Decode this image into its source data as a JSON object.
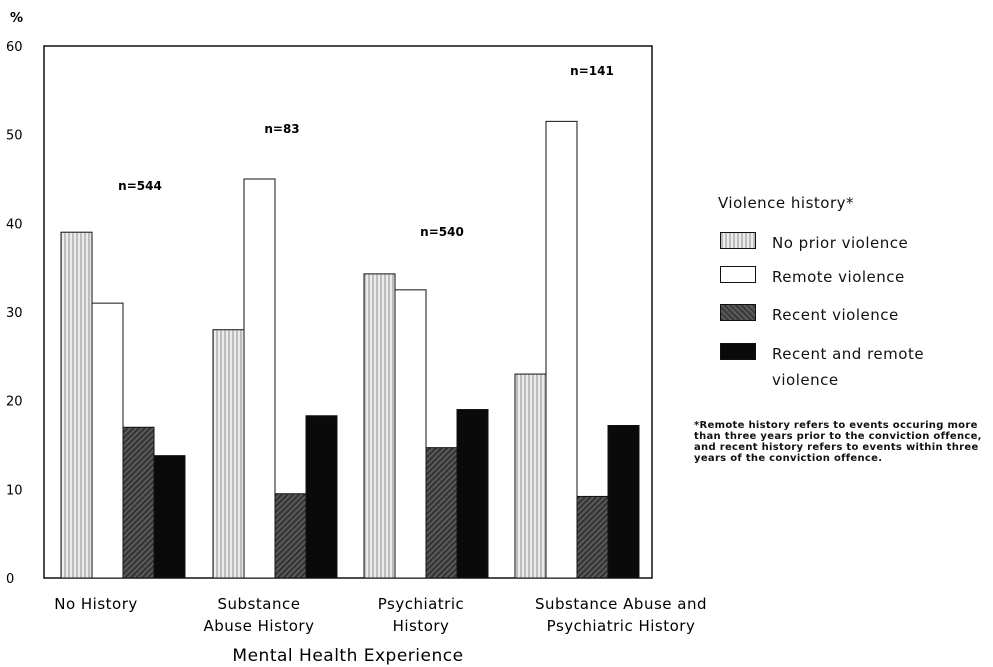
{
  "chart_data": {
    "type": "bar",
    "y_unit_label": "%",
    "xlabel": "Mental Health Experience",
    "ylim": [
      0,
      60
    ],
    "yticks": [
      "0",
      "10",
      "20",
      "30",
      "40",
      "50",
      "60"
    ],
    "categories": [
      [
        "No History"
      ],
      [
        "Substance",
        "Abuse History"
      ],
      [
        "Psychiatric",
        "History"
      ],
      [
        "Substance Abuse and",
        "Psychiatric History"
      ]
    ],
    "sample_sizes": [
      "n=544",
      "n=83",
      "n=540",
      "n=141"
    ],
    "series": [
      {
        "name": "No prior violence",
        "values": [
          39,
          28,
          34.3,
          23
        ]
      },
      {
        "name": "Remote violence",
        "values": [
          31,
          45,
          32.5,
          51.5
        ]
      },
      {
        "name": "Recent violence",
        "values": [
          17,
          9.5,
          14.7,
          9.2
        ]
      },
      {
        "name": "Recent and remote violence",
        "values": [
          13.8,
          18.3,
          19,
          17.2
        ]
      }
    ],
    "legend_title": "Violence history*",
    "legend_placement": "right"
  },
  "legend": {
    "title": "Violence history*",
    "items": [
      {
        "label": "No prior violence",
        "pattern": "hatch"
      },
      {
        "label": "Remote violence",
        "pattern": "white"
      },
      {
        "label": "Recent violence",
        "pattern": "dark"
      },
      {
        "label": "Recent and remote violence",
        "pattern": "black"
      }
    ]
  },
  "footnote": "*Remote history refers to events occuring more than three years prior to the conviction offence, and recent history refers to events within three years of the conviction offence."
}
